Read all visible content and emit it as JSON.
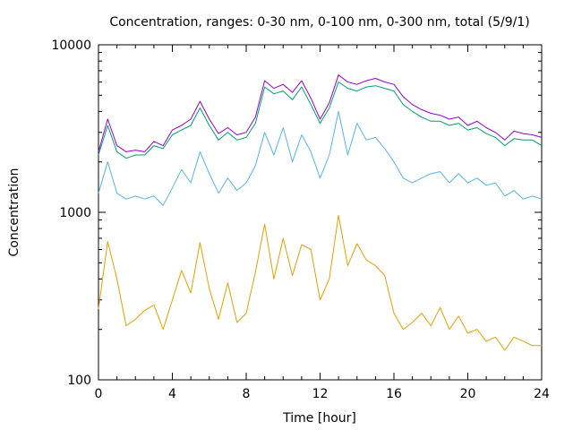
{
  "chart_data": {
    "type": "line",
    "title": "Concentration, ranges: 0-30 nm, 0-100 nm, 0-300 nm, total (5/9/1)",
    "xlabel": "Time [hour]",
    "ylabel": "Concentration",
    "xlim": [
      0,
      24
    ],
    "ylim": [
      100,
      10000
    ],
    "yscale": "log",
    "grid": false,
    "x_ticks": [
      0,
      4,
      8,
      12,
      16,
      20,
      24
    ],
    "x_tick_labels": [
      "0",
      "4",
      "8",
      "12",
      "16",
      "20",
      "24"
    ],
    "y_ticks": [
      100,
      1000,
      10000
    ],
    "y_tick_labels": [
      "100",
      "1000",
      "10000"
    ],
    "x": [
      0,
      0.5,
      1,
      1.5,
      2,
      2.5,
      3,
      3.5,
      4,
      4.5,
      5,
      5.5,
      6,
      6.5,
      7,
      7.5,
      8,
      8.5,
      9,
      9.5,
      10,
      10.5,
      11,
      11.5,
      12,
      12.5,
      13,
      13.5,
      14,
      14.5,
      15,
      15.5,
      16,
      16.5,
      17,
      17.5,
      18,
      18.5,
      19,
      19.5,
      20,
      20.5,
      21,
      21.5,
      22,
      22.5,
      23,
      23.5,
      24
    ],
    "series": [
      {
        "color": "#e69f00",
        "values": [
          265,
          670,
          400,
          210,
          230,
          260,
          280,
          200,
          300,
          450,
          330,
          660,
          350,
          230,
          380,
          220,
          250,
          440,
          850,
          400,
          700,
          420,
          640,
          600,
          300,
          400,
          960,
          480,
          650,
          520,
          480,
          420,
          250,
          200,
          220,
          250,
          210,
          270,
          200,
          240,
          190,
          200,
          170,
          180,
          150,
          180,
          170,
          160,
          160
        ]
      },
      {
        "color": "#56b4e9",
        "values": [
          1300,
          2000,
          1300,
          1200,
          1250,
          1200,
          1250,
          1100,
          1400,
          1800,
          1500,
          2300,
          1700,
          1300,
          1600,
          1350,
          1500,
          1900,
          3000,
          2200,
          3200,
          2000,
          2900,
          2300,
          1600,
          2200,
          4000,
          2200,
          3400,
          2700,
          2800,
          2400,
          2000,
          1600,
          1500,
          1600,
          1700,
          1750,
          1500,
          1700,
          1500,
          1600,
          1450,
          1500,
          1250,
          1350,
          1200,
          1250,
          1200
        ]
      },
      {
        "color": "#009e73",
        "values": [
          2200,
          3300,
          2300,
          2100,
          2200,
          2200,
          2500,
          2400,
          2900,
          3100,
          3300,
          4200,
          3300,
          2700,
          3000,
          2700,
          2800,
          3400,
          5600,
          5100,
          5300,
          4700,
          5600,
          4400,
          3400,
          4200,
          6000,
          5500,
          5300,
          5600,
          5700,
          5500,
          5300,
          4400,
          4000,
          3700,
          3500,
          3500,
          3300,
          3400,
          3100,
          3200,
          2950,
          2800,
          2500,
          2750,
          2700,
          2700,
          2500
        ]
      },
      {
        "color": "#9400d3",
        "values": [
          2300,
          3600,
          2500,
          2300,
          2350,
          2300,
          2650,
          2500,
          3100,
          3300,
          3600,
          4600,
          3600,
          2950,
          3200,
          2900,
          3000,
          3700,
          6100,
          5500,
          5800,
          5200,
          6100,
          4800,
          3600,
          4500,
          6600,
          6000,
          5800,
          6100,
          6300,
          6000,
          5800,
          4900,
          4400,
          4100,
          3900,
          3800,
          3600,
          3700,
          3300,
          3500,
          3200,
          3000,
          2700,
          3050,
          2950,
          2900,
          2800
        ]
      }
    ]
  }
}
